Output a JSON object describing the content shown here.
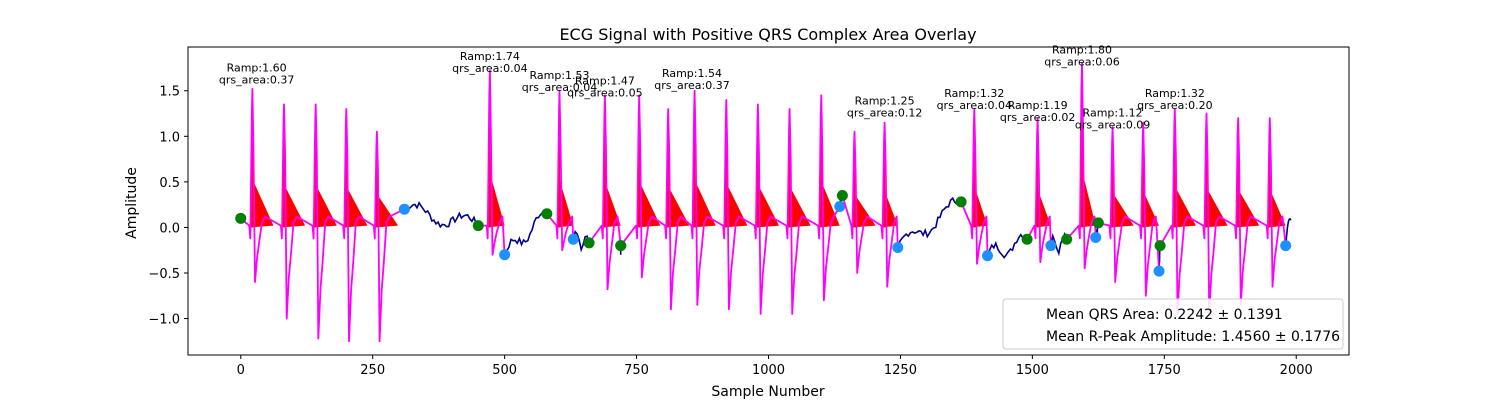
{
  "chart_data": {
    "type": "line",
    "title": "ECG Signal with Positive QRS Complex Area Overlay",
    "xlabel": "Sample Number",
    "ylabel": "Amplitude",
    "xlim": [
      -100,
      2100
    ],
    "ylim": [
      -1.4,
      1.98
    ],
    "xticks": [
      0,
      250,
      500,
      750,
      1000,
      1250,
      1500,
      1750,
      2000
    ],
    "yticks": [
      -1.0,
      -0.5,
      0.0,
      0.5,
      1.0,
      1.5
    ],
    "grid": false,
    "legend_placement": "lower-right",
    "legend_entries": [
      "Mean QRS Area: 0.2242 ± 0.1391",
      "Mean R-Peak Amplitude: 1.4560 ± 0.1776"
    ],
    "colors": {
      "baseline_signal": "#00008b",
      "qrs_signal": "#ff00ff",
      "qrs_area_fill": "#ff0000",
      "onset_marker": "#008000",
      "offset_marker": "#1e90ff"
    },
    "segments": [
      {
        "onset": 0,
        "offset": 310,
        "onset_y": 0.1,
        "offset_y": 0.2,
        "peaks": [
          {
            "x": 22,
            "y": 1.52,
            "neg": -0.6
          },
          {
            "x": 82,
            "y": 1.35,
            "neg": -1.0
          },
          {
            "x": 142,
            "y": 1.35,
            "neg": -1.22
          },
          {
            "x": 200,
            "y": 1.3,
            "neg": -1.25
          },
          {
            "x": 258,
            "y": 1.05,
            "neg": -1.25
          }
        ]
      },
      {
        "onset": 450,
        "offset": 500,
        "onset_y": 0.02,
        "offset_y": -0.3,
        "peaks": [
          {
            "x": 472,
            "y": 1.72,
            "neg": -0.3
          }
        ]
      },
      {
        "onset": 580,
        "offset": 630,
        "onset_y": 0.15,
        "offset_y": -0.13,
        "peaks": [
          {
            "x": 604,
            "y": 1.5,
            "neg": -0.25
          }
        ]
      },
      {
        "onset": 660,
        "offset": 720,
        "onset_y": -0.17,
        "offset_y": -0.2,
        "peaks": [
          {
            "x": 690,
            "y": 1.45,
            "neg": -0.68
          }
        ]
      },
      {
        "onset": 720,
        "offset": 1135,
        "onset_y": -0.2,
        "offset_y": 0.23,
        "peaks": [
          {
            "x": 755,
            "y": 1.45,
            "neg": -0.55
          },
          {
            "x": 810,
            "y": 1.3,
            "neg": -0.9
          },
          {
            "x": 860,
            "y": 1.5,
            "neg": -0.85
          },
          {
            "x": 920,
            "y": 1.4,
            "neg": -0.9
          },
          {
            "x": 980,
            "y": 1.35,
            "neg": -0.95
          },
          {
            "x": 1040,
            "y": 1.3,
            "neg": -0.95
          },
          {
            "x": 1100,
            "y": 1.45,
            "neg": -0.8
          }
        ]
      },
      {
        "onset": 1140,
        "offset": 1245,
        "onset_y": 0.35,
        "offset_y": -0.22,
        "peaks": [
          {
            "x": 1163,
            "y": 1.05,
            "neg": -0.5
          },
          {
            "x": 1220,
            "y": 1.15,
            "neg": -0.65
          }
        ]
      },
      {
        "onset": 1365,
        "offset": 1415,
        "onset_y": 0.28,
        "offset_y": -0.31,
        "peaks": [
          {
            "x": 1390,
            "y": 1.3,
            "neg": -0.4
          }
        ]
      },
      {
        "onset": 1490,
        "offset": 1535,
        "onset_y": -0.13,
        "offset_y": -0.2,
        "peaks": [
          {
            "x": 1510,
            "y": 1.2,
            "neg": -0.38
          }
        ]
      },
      {
        "onset": 1565,
        "offset": 1620,
        "onset_y": -0.13,
        "offset_y": -0.11,
        "peaks": [
          {
            "x": 1594,
            "y": 1.8,
            "neg": -0.45
          }
        ]
      },
      {
        "onset": 1625,
        "offset": 1740,
        "onset_y": 0.05,
        "offset_y": -0.48,
        "peaks": [
          {
            "x": 1652,
            "y": 1.1,
            "neg": -0.6
          },
          {
            "x": 1710,
            "y": 1.15,
            "neg": -0.75
          }
        ]
      },
      {
        "onset": 1742,
        "offset": 1980,
        "onset_y": -0.2,
        "offset_y": -0.2,
        "peaks": [
          {
            "x": 1770,
            "y": 1.3,
            "neg": -0.95
          },
          {
            "x": 1830,
            "y": 1.25,
            "neg": -0.95
          },
          {
            "x": 1890,
            "y": 1.2,
            "neg": -0.85
          },
          {
            "x": 1950,
            "y": 1.2,
            "neg": -0.65
          }
        ]
      }
    ],
    "baseline_end": {
      "x": 1990,
      "y": 0.08
    },
    "annotations": [
      {
        "label1": "Ramp:1.60",
        "label2": "qrs_area:0.37",
        "x": 30,
        "y": 1.6
      },
      {
        "label1": "Ramp:1.74",
        "label2": "qrs_area:0.04",
        "x": 472,
        "y": 1.73
      },
      {
        "label1": "Ramp:1.53",
        "label2": "qrs_area:0.04",
        "x": 604,
        "y": 1.52
      },
      {
        "label1": "Ramp:1.47",
        "label2": "qrs_area:0.05",
        "x": 690,
        "y": 1.46
      },
      {
        "label1": "Ramp:1.54",
        "label2": "qrs_area:0.37",
        "x": 855,
        "y": 1.54
      },
      {
        "label1": "Ramp:1.25",
        "label2": "qrs_area:0.12",
        "x": 1220,
        "y": 1.24
      },
      {
        "label1": "Ramp:1.32",
        "label2": "qrs_area:0.04",
        "x": 1390,
        "y": 1.32
      },
      {
        "label1": "Ramp:1.19",
        "label2": "qrs_area:0.02",
        "x": 1510,
        "y": 1.19
      },
      {
        "label1": "Ramp:1.80",
        "label2": "qrs_area:0.06",
        "x": 1594,
        "y": 1.8
      },
      {
        "label1": "Ramp:1.12",
        "label2": "qrs_area:0.09",
        "x": 1652,
        "y": 1.11
      },
      {
        "label1": "Ramp:1.32",
        "label2": "qrs_area:0.20",
        "x": 1770,
        "y": 1.32
      }
    ]
  }
}
